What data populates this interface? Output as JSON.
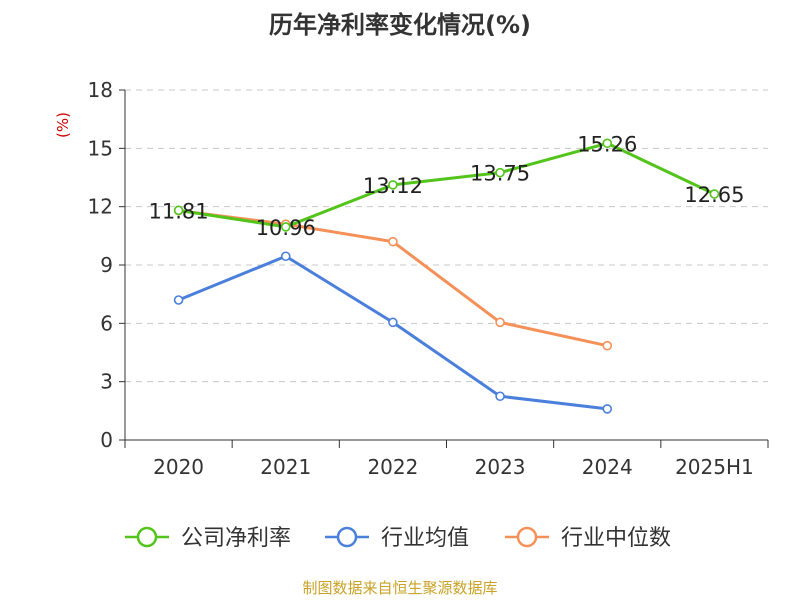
{
  "chart_data": {
    "type": "line",
    "title": "历年净利率变化情况(%)",
    "ylabel": "(%)",
    "xlabel": "",
    "categories": [
      "2020",
      "2021",
      "2022",
      "2023",
      "2024",
      "2025H1"
    ],
    "ylim": [
      0,
      18
    ],
    "yticks": [
      "0",
      "3",
      "6",
      "9",
      "12",
      "15",
      "18"
    ],
    "grid": true,
    "legend_position": "bottom",
    "series": [
      {
        "name": "公司净利率",
        "color": "#52c41a",
        "values": [
          11.81,
          10.96,
          13.12,
          13.75,
          15.26,
          12.65
        ],
        "labels": [
          "11.81",
          "10.96",
          "13.12",
          "13.75",
          "15.26",
          "12.65"
        ]
      },
      {
        "name": "行业均值",
        "color": "#4a7fdc",
        "values": [
          7.2,
          9.45,
          6.05,
          2.25,
          1.6,
          null
        ],
        "labels": []
      },
      {
        "name": "行业中位数",
        "color": "#f59058",
        "values": [
          11.8,
          11.1,
          10.2,
          6.05,
          4.85,
          null
        ],
        "labels": []
      }
    ],
    "source": "制图数据来自恒生聚源数据库"
  }
}
